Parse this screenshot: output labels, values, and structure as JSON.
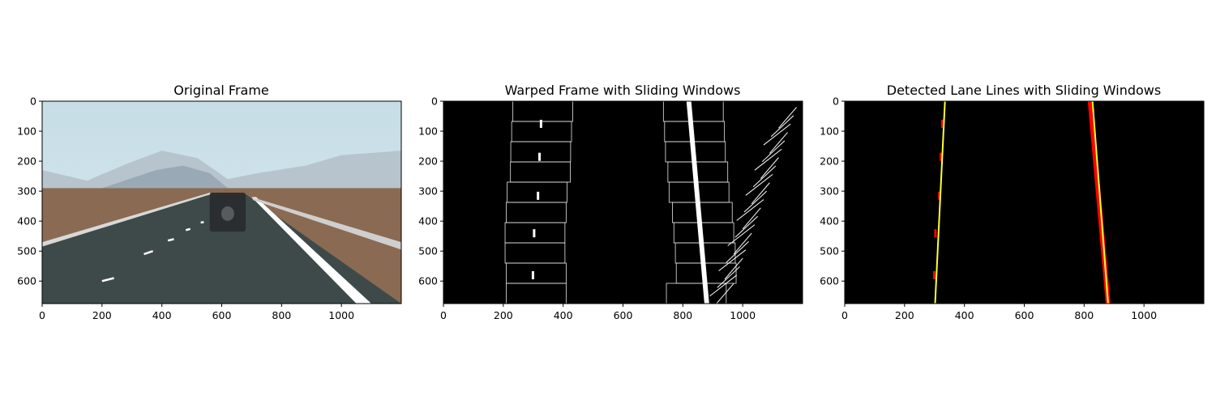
{
  "colors": {
    "sky_top": "#c6dde6",
    "sky_bottom": "#d9e8ee",
    "mountain": "#9aa9b6",
    "mountain_far": "#b7c4ce",
    "terrain": "#8a6a52",
    "road": "#3e4a4a",
    "lane_mark": "#ffffff",
    "binary_bg": "#000000",
    "window": "#e6e6e6",
    "fit_line": "#ffff33",
    "lane_pixels": "#ff0000"
  },
  "chart_data": [
    {
      "type": "image",
      "title": "Original Frame",
      "xlim": [
        0,
        1200
      ],
      "ylim": [
        675,
        0
      ],
      "xticks": [
        0,
        200,
        400,
        600,
        800,
        1000
      ],
      "yticks": [
        0,
        100,
        200,
        300,
        400,
        500,
        600
      ]
    },
    {
      "type": "image",
      "title": "Warped Frame with Sliding Windows",
      "xlim": [
        0,
        1200
      ],
      "ylim": [
        675,
        0
      ],
      "xticks": [
        0,
        200,
        400,
        600,
        800,
        1000
      ],
      "yticks": [
        0,
        100,
        200,
        300,
        400,
        500,
        600
      ],
      "left_windows_center_x": [
        332,
        328,
        325,
        324,
        313,
        310,
        306,
        306,
        310,
        310
      ],
      "right_windows_center_x": [
        835,
        839,
        842,
        850,
        854,
        865,
        870,
        875,
        878,
        845
      ],
      "window_half_width": 100,
      "window_height": 67.5,
      "left_lane_blobs": [
        {
          "x": 330,
          "y": 80
        },
        {
          "x": 325,
          "y": 190
        },
        {
          "x": 320,
          "y": 320
        },
        {
          "x": 307,
          "y": 445
        },
        {
          "x": 303,
          "y": 585
        }
      ],
      "right_lane": {
        "x_top": 820,
        "x_bottom": 880
      }
    },
    {
      "type": "image",
      "title": "Detected Lane Lines with Sliding Windows",
      "xlim": [
        0,
        1200
      ],
      "ylim": [
        675,
        0
      ],
      "xticks": [
        0,
        200,
        400,
        600,
        800,
        1000
      ],
      "yticks": [
        0,
        100,
        200,
        300,
        400,
        500,
        600
      ],
      "left_fit_line": {
        "x_top": 335,
        "x_bottom": 302
      },
      "right_fit_line": {
        "x_top": 828,
        "x_bottom": 880
      }
    }
  ]
}
